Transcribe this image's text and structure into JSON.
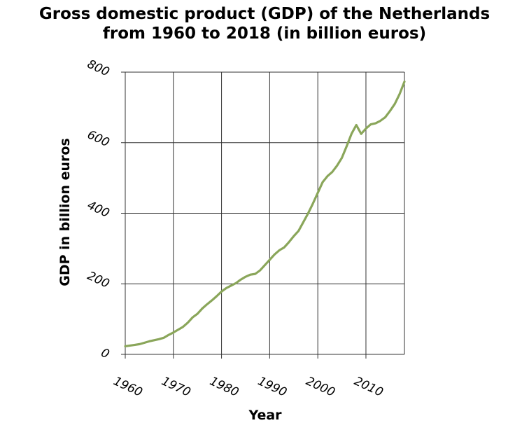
{
  "chart_data": {
    "type": "line",
    "title_lines": [
      "Gross domestic product (GDP) of the Netherlands",
      "from 1960 to 2018 (in billion euros)"
    ],
    "xlabel": "Year",
    "ylabel": "GDP in billion euros",
    "xlim": [
      1960,
      2018
    ],
    "ylim": [
      0,
      800
    ],
    "x_ticks": [
      1960,
      1970,
      1980,
      1990,
      2000,
      2010
    ],
    "y_ticks": [
      0,
      200,
      400,
      600,
      800
    ],
    "grid": true,
    "legend": "none",
    "line_color": "#8aa65a",
    "series": [
      {
        "x": [
          1960,
          1961,
          1962,
          1963,
          1964,
          1965,
          1966,
          1967,
          1968,
          1969,
          1970,
          1971,
          1972,
          1973,
          1974,
          1975,
          1976,
          1977,
          1978,
          1979,
          1980,
          1981,
          1982,
          1983,
          1984,
          1985,
          1986,
          1987,
          1988,
          1989,
          1990,
          1991,
          1992,
          1993,
          1994,
          1995,
          1996,
          1997,
          1998,
          1999,
          2000,
          2001,
          2002,
          2003,
          2004,
          2005,
          2006,
          2007,
          2008,
          2009,
          2010,
          2011,
          2012,
          2013,
          2014,
          2015,
          2016,
          2017,
          2018
        ],
        "values": [
          23,
          25,
          27,
          29,
          33,
          37,
          40,
          43,
          47,
          55,
          62,
          70,
          78,
          90,
          105,
          115,
          130,
          142,
          153,
          165,
          178,
          188,
          195,
          202,
          212,
          220,
          226,
          228,
          238,
          253,
          268,
          283,
          295,
          303,
          318,
          335,
          350,
          375,
          400,
          428,
          458,
          488,
          505,
          517,
          535,
          557,
          590,
          625,
          650,
          625,
          640,
          652,
          655,
          662,
          672,
          690,
          710,
          738,
          773
        ]
      }
    ]
  }
}
